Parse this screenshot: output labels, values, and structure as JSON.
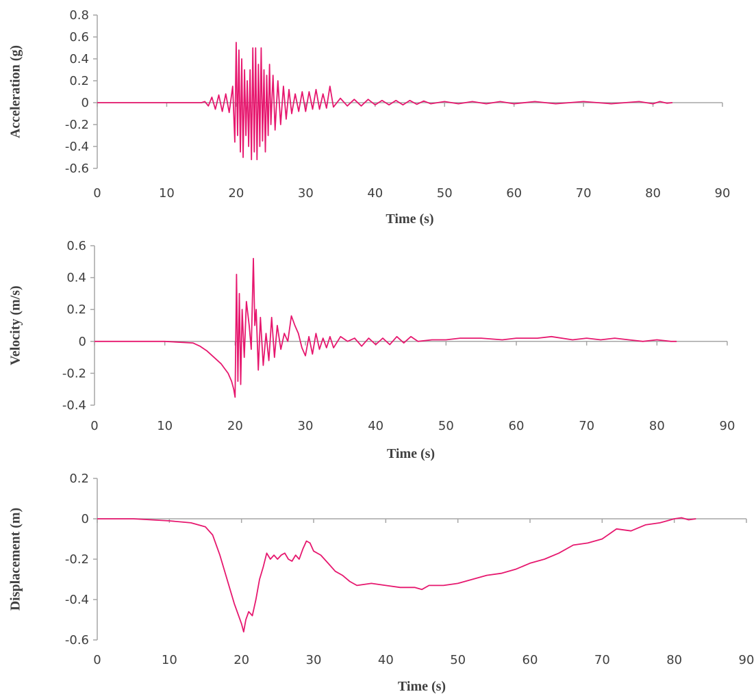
{
  "colors": {
    "series": "#e6176e",
    "axis": "#a6a6a6",
    "text": "#404040"
  },
  "chart_data": [
    {
      "type": "line",
      "title": "",
      "xlabel": "Time (s)",
      "ylabel": "Acceleration (g)",
      "xlim": [
        0,
        90
      ],
      "ylim": [
        -0.6,
        0.8
      ],
      "xticks": [
        0,
        10,
        20,
        30,
        40,
        50,
        60,
        70,
        80,
        90
      ],
      "yticks": [
        -0.6,
        -0.4,
        -0.2,
        0,
        0.2,
        0.4,
        0.6,
        0.8
      ],
      "xtick_labels": [
        "0",
        "10",
        "20",
        "30",
        "40",
        "50",
        "60",
        "70",
        "80",
        "90"
      ],
      "ytick_labels": [
        "-0.6",
        "-0.4",
        "-0.2",
        "0",
        "0.2",
        "0.4",
        "0.6",
        "0.8"
      ],
      "grid": false,
      "series": [
        {
          "x": [
            0,
            15,
            15.5,
            16,
            16.5,
            17,
            17.5,
            18,
            18.5,
            19,
            19.5,
            19.8,
            20.0,
            20.2,
            20.4,
            20.6,
            20.8,
            21.0,
            21.2,
            21.4,
            21.6,
            21.8,
            22.0,
            22.2,
            22.4,
            22.6,
            22.8,
            23.0,
            23.2,
            23.4,
            23.6,
            23.8,
            24.0,
            24.2,
            24.4,
            24.6,
            24.8,
            25.0,
            25.3,
            25.6,
            26.0,
            26.4,
            26.8,
            27.2,
            27.6,
            28.0,
            28.5,
            29.0,
            29.5,
            30.0,
            30.5,
            31.0,
            31.5,
            32.0,
            32.5,
            33.0,
            33.5,
            34.0,
            35.0,
            36.0,
            37.0,
            38.0,
            39.0,
            40.0,
            41.0,
            42.0,
            43.0,
            44.0,
            45.0,
            46.0,
            47.0,
            48.0,
            50.0,
            52.0,
            54.0,
            56.0,
            58.0,
            60.0,
            63.0,
            66.0,
            70.0,
            74.0,
            78.0,
            80.0,
            81.0,
            82.0,
            82.8
          ],
          "y": [
            0,
            0,
            0.01,
            -0.03,
            0.05,
            -0.06,
            0.07,
            -0.08,
            0.08,
            -0.09,
            0.15,
            -0.36,
            0.55,
            -0.3,
            0.48,
            -0.45,
            0.4,
            -0.5,
            0.3,
            -0.3,
            0.2,
            -0.4,
            0.3,
            -0.52,
            0.5,
            -0.45,
            0.5,
            -0.52,
            0.35,
            -0.4,
            0.5,
            -0.35,
            0.3,
            -0.45,
            0.25,
            -0.3,
            0.35,
            -0.2,
            0.25,
            -0.25,
            0.2,
            -0.2,
            0.15,
            -0.15,
            0.12,
            -0.1,
            0.08,
            -0.08,
            0.1,
            -0.08,
            0.1,
            -0.06,
            0.12,
            -0.06,
            0.08,
            -0.05,
            0.15,
            -0.04,
            0.04,
            -0.03,
            0.03,
            -0.03,
            0.03,
            -0.02,
            0.02,
            -0.02,
            0.02,
            -0.02,
            0.02,
            -0.015,
            0.015,
            -0.01,
            0.01,
            -0.01,
            0.01,
            -0.01,
            0.01,
            -0.01,
            0.01,
            -0.01,
            0.01,
            -0.01,
            0.01,
            -0.01,
            0.01,
            -0.005,
            0
          ]
        }
      ]
    },
    {
      "type": "line",
      "title": "",
      "xlabel": "Time (s)",
      "ylabel": "Velocity (m/s)",
      "xlim": [
        0,
        90
      ],
      "ylim": [
        -0.4,
        0.6
      ],
      "xticks": [
        0,
        10,
        20,
        30,
        40,
        50,
        60,
        70,
        80,
        90
      ],
      "yticks": [
        -0.4,
        -0.2,
        0,
        0.2,
        0.4,
        0.6
      ],
      "xtick_labels": [
        "0",
        "10",
        "20",
        "30",
        "40",
        "50",
        "60",
        "70",
        "80",
        "90"
      ],
      "ytick_labels": [
        "-0.4",
        "-0.2",
        "0",
        "0.2",
        "0.4",
        "0.6"
      ],
      "grid": false,
      "series": [
        {
          "x": [
            0,
            10,
            14,
            15,
            16,
            17,
            17.5,
            18,
            18.5,
            19,
            19.5,
            19.8,
            20.0,
            20.2,
            20.4,
            20.6,
            20.8,
            21.0,
            21.3,
            21.6,
            22.0,
            22.3,
            22.6,
            22.8,
            23.0,
            23.3,
            23.6,
            24.0,
            24.4,
            24.8,
            25.2,
            25.6,
            26.0,
            26.5,
            27.0,
            27.5,
            28.0,
            28.5,
            29.0,
            29.5,
            30.0,
            30.5,
            31.0,
            31.5,
            32.0,
            32.5,
            33.0,
            33.5,
            34.0,
            35.0,
            36.0,
            37.0,
            38.0,
            39.0,
            40.0,
            41.0,
            42.0,
            43.0,
            44.0,
            45.0,
            46.0,
            48.0,
            50.0,
            52.0,
            55.0,
            58.0,
            60.0,
            63.0,
            65.0,
            68.0,
            70.0,
            72.0,
            74.0,
            76.0,
            78.0,
            80.0,
            82.0,
            82.8
          ],
          "y": [
            0,
            0,
            -0.01,
            -0.03,
            -0.06,
            -0.1,
            -0.12,
            -0.14,
            -0.17,
            -0.2,
            -0.25,
            -0.3,
            -0.35,
            0.42,
            -0.25,
            0.3,
            -0.27,
            0.2,
            -0.1,
            0.25,
            0.1,
            -0.05,
            0.52,
            0.1,
            0.2,
            -0.18,
            0.15,
            -0.15,
            0.05,
            -0.12,
            0.15,
            -0.1,
            0.1,
            -0.05,
            0.05,
            0.0,
            0.16,
            0.1,
            0.05,
            -0.04,
            -0.09,
            0.03,
            -0.08,
            0.05,
            -0.05,
            0.02,
            -0.04,
            0.03,
            -0.04,
            0.03,
            0.0,
            0.02,
            -0.03,
            0.02,
            -0.02,
            0.02,
            -0.02,
            0.03,
            -0.01,
            0.03,
            0.0,
            0.01,
            0.01,
            0.02,
            0.02,
            0.01,
            0.02,
            0.02,
            0.03,
            0.01,
            0.02,
            0.01,
            0.02,
            0.01,
            0.0,
            0.01,
            0.0,
            0.0
          ]
        }
      ]
    },
    {
      "type": "line",
      "title": "",
      "xlabel": "Time (s)",
      "ylabel": "Displacement (m)",
      "xlim": [
        0,
        90
      ],
      "ylim": [
        -0.6,
        0.2
      ],
      "xticks": [
        0,
        10,
        20,
        30,
        40,
        50,
        60,
        70,
        80,
        90
      ],
      "yticks": [
        -0.6,
        -0.4,
        -0.2,
        0,
        0.2
      ],
      "xtick_labels": [
        "0",
        "10",
        "20",
        "30",
        "40",
        "50",
        "60",
        "70",
        "80",
        "90"
      ],
      "ytick_labels": [
        "-0.6",
        "-0.4",
        "-0.2",
        "0",
        "0.2"
      ],
      "grid": false,
      "series": [
        {
          "x": [
            0,
            5,
            10,
            13,
            15,
            16,
            17,
            18,
            19,
            20,
            20.3,
            20.6,
            21,
            21.5,
            22,
            22.5,
            23,
            23.5,
            24,
            24.5,
            25,
            25.5,
            26,
            26.5,
            27,
            27.5,
            28,
            28.5,
            29,
            29.5,
            30,
            31,
            32,
            33,
            34,
            35,
            36,
            38,
            40,
            42,
            44,
            45,
            46,
            48,
            50,
            52,
            54,
            56,
            58,
            60,
            62,
            64,
            66,
            68,
            70,
            72,
            74,
            76,
            78,
            79,
            80,
            81,
            82,
            83
          ],
          "y": [
            0,
            0,
            -0.01,
            -0.02,
            -0.04,
            -0.08,
            -0.18,
            -0.3,
            -0.42,
            -0.52,
            -0.56,
            -0.5,
            -0.46,
            -0.48,
            -0.4,
            -0.3,
            -0.24,
            -0.17,
            -0.2,
            -0.18,
            -0.2,
            -0.18,
            -0.17,
            -0.2,
            -0.21,
            -0.18,
            -0.2,
            -0.15,
            -0.11,
            -0.12,
            -0.16,
            -0.18,
            -0.22,
            -0.26,
            -0.28,
            -0.31,
            -0.33,
            -0.32,
            -0.33,
            -0.34,
            -0.34,
            -0.35,
            -0.33,
            -0.33,
            -0.32,
            -0.3,
            -0.28,
            -0.27,
            -0.25,
            -0.22,
            -0.2,
            -0.17,
            -0.13,
            -0.12,
            -0.1,
            -0.05,
            -0.06,
            -0.03,
            -0.02,
            -0.01,
            0.0,
            0.005,
            -0.005,
            0.0
          ]
        }
      ]
    }
  ]
}
